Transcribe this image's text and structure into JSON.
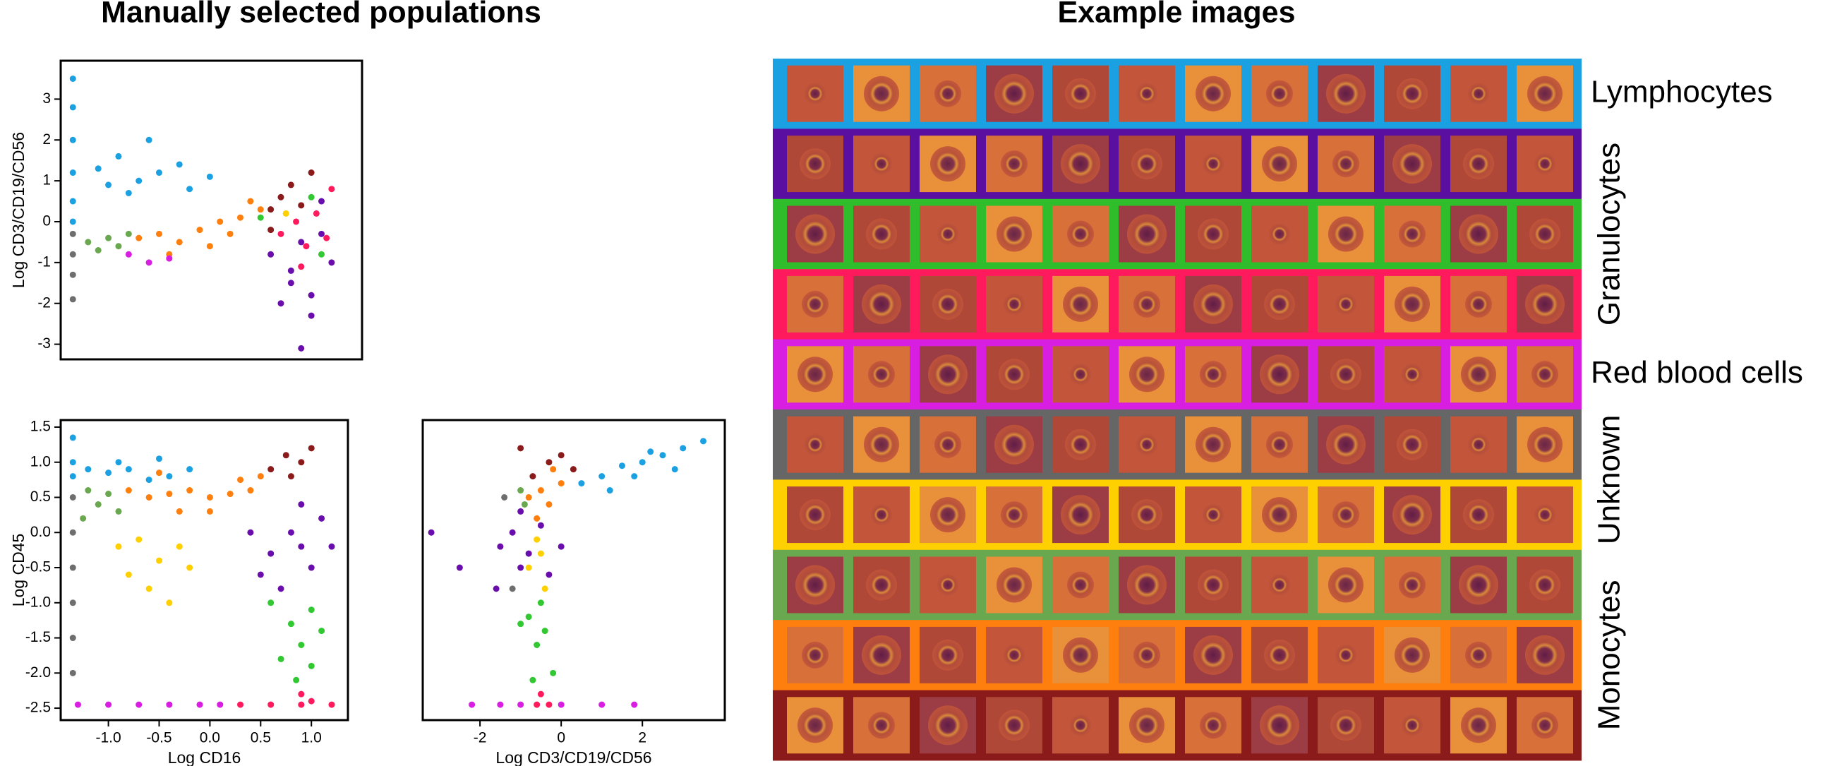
{
  "header": {
    "left_title": "Manually selected populations",
    "right_title": "Example images"
  },
  "chart_data": [
    {
      "type": "scatter",
      "y_label": "Log CD3/CD19/CD56",
      "xlim": [
        -1.47,
        1.5
      ],
      "ylim": [
        -3.37,
        3.94
      ],
      "yticks": [
        -3,
        -2,
        -1,
        0,
        1,
        2,
        3
      ],
      "series": [
        {
          "color": "#1ba1e2",
          "x": [
            -1.35,
            -1.35,
            -1.35,
            -1.35,
            -1.35,
            -1.35,
            -1.1,
            -0.9,
            -0.7,
            -0.5,
            -0.3,
            -0.6,
            -0.8,
            -0.2,
            0,
            -1.0
          ],
          "values": [
            3.5,
            2.8,
            2.0,
            1.2,
            0.5,
            0,
            1.3,
            1.6,
            1.0,
            1.2,
            1.4,
            2.0,
            0.7,
            0.8,
            1.1,
            0.9
          ]
        },
        {
          "color": "#6e6e6e",
          "x": [
            -1.35,
            -1.35,
            -1.35,
            -1.35
          ],
          "values": [
            -0.3,
            -0.8,
            -1.3,
            -1.9
          ]
        },
        {
          "color": "#6aa84f",
          "x": [
            -1.2,
            -1.0,
            -0.9,
            -1.1,
            -0.8
          ],
          "values": [
            -0.5,
            -0.4,
            -0.6,
            -0.7,
            -0.3
          ]
        },
        {
          "color": "#ff7f0e",
          "x": [
            -0.7,
            -0.5,
            -0.3,
            -0.1,
            0.1,
            0.3,
            0.5,
            0.2,
            -0.4,
            0.4,
            0
          ],
          "values": [
            -0.4,
            -0.3,
            -0.5,
            -0.2,
            0,
            0.1,
            0.3,
            -0.3,
            -0.8,
            0.5,
            -0.6
          ]
        },
        {
          "color": "#8b1a1a",
          "x": [
            0.6,
            0.7,
            0.8,
            0.9,
            1.0,
            0.6
          ],
          "values": [
            0.3,
            0.6,
            0.9,
            0.4,
            1.2,
            -0.2
          ]
        },
        {
          "color": "#6a0dad",
          "x": [
            0.6,
            0.8,
            0.9,
            1.0,
            1.1,
            0.7,
            1.0,
            0.9,
            1.1,
            0.8,
            1.2
          ],
          "values": [
            -0.8,
            -1.2,
            -0.5,
            -1.8,
            -0.3,
            -2.0,
            -2.3,
            -3.1,
            0.5,
            -1.5,
            -1.0
          ]
        },
        {
          "color": "#ff1a5e",
          "x": [
            0.7,
            0.85,
            0.95,
            1.05,
            1.15,
            1.2,
            0.9
          ],
          "values": [
            -0.3,
            0,
            -0.6,
            0.2,
            -0.4,
            0.8,
            -1.1
          ]
        },
        {
          "color": "#d81ee0",
          "x": [
            -0.6,
            -0.4,
            -0.8
          ],
          "values": [
            -1.0,
            -0.9,
            -0.8
          ]
        },
        {
          "color": "#32c832",
          "x": [
            0.5,
            1.0,
            1.1
          ],
          "values": [
            0.1,
            0.6,
            -0.8
          ]
        },
        {
          "color": "#ffd000",
          "x": [
            0.75
          ],
          "values": [
            0.2
          ]
        }
      ]
    },
    {
      "type": "scatter",
      "x_label": "Log CD16",
      "y_label": "Log CD45",
      "xlim": [
        -1.47,
        1.36
      ],
      "ylim": [
        -2.67,
        1.6
      ],
      "xticks": [
        {
          "value": -1,
          "label": "-1.0"
        },
        -0.5,
        {
          "value": 0,
          "label": "0.0"
        },
        0.5,
        {
          "value": 1,
          "label": "1.0"
        }
      ],
      "yticks": [
        -2.5,
        {
          "value": -2,
          "label": "-2.0"
        },
        -1.5,
        {
          "value": -1,
          "label": "-1.0"
        },
        -0.5,
        {
          "value": 0,
          "label": "0.0"
        },
        0.5,
        {
          "value": 1,
          "label": "1.0"
        },
        1.5
      ],
      "series": [
        {
          "color": "#1ba1e2",
          "x": [
            -1.35,
            -1.35,
            -1.35,
            -1.2,
            -1.0,
            -0.8,
            -0.6,
            -0.4,
            -0.2,
            -0.9,
            -0.5
          ],
          "values": [
            1.35,
            1.0,
            0.8,
            0.9,
            0.85,
            0.9,
            0.75,
            0.8,
            0.9,
            1.0,
            1.05
          ]
        },
        {
          "color": "#6e6e6e",
          "x": [
            -1.35,
            -1.35,
            -1.35,
            -1.35,
            -1.35,
            -1.35
          ],
          "values": [
            0.5,
            0,
            -0.5,
            -1.0,
            -1.5,
            -2.0
          ]
        },
        {
          "color": "#6aa84f",
          "x": [
            -1.2,
            -1.0,
            -1.1,
            -0.9,
            -1.25
          ],
          "values": [
            0.6,
            0.55,
            0.4,
            0.3,
            0.2
          ]
        },
        {
          "color": "#ff7f0e",
          "x": [
            -0.8,
            -0.6,
            -0.4,
            -0.2,
            0,
            0.2,
            0.4,
            0.5,
            -0.3,
            0,
            0.3,
            -0.5
          ],
          "values": [
            0.6,
            0.5,
            0.55,
            0.6,
            0.5,
            0.55,
            0.6,
            0.8,
            0.3,
            0.3,
            0.75,
            0.85
          ]
        },
        {
          "color": "#ffd000",
          "x": [
            -0.9,
            -0.7,
            -0.5,
            -0.3,
            -0.6,
            -0.4,
            -0.8,
            -0.2
          ],
          "values": [
            -0.2,
            -0.1,
            -0.4,
            -0.2,
            -0.8,
            -1.0,
            -0.6,
            -0.5
          ]
        },
        {
          "color": "#8b1a1a",
          "x": [
            0.6,
            0.75,
            0.9,
            1.0,
            0.8
          ],
          "values": [
            0.9,
            1.1,
            1.0,
            1.2,
            0.8
          ]
        },
        {
          "color": "#6a0dad",
          "x": [
            0.4,
            0.6,
            0.8,
            1.0,
            1.1,
            0.7,
            0.9,
            1.2,
            0.5,
            0.9
          ],
          "values": [
            0,
            -0.3,
            0,
            -0.5,
            0.2,
            -0.8,
            0.4,
            -0.2,
            -0.6,
            -0.2
          ]
        },
        {
          "color": "#32c832",
          "x": [
            0.6,
            0.8,
            1.0,
            0.9,
            0.7,
            1.1,
            0.85,
            1.0
          ],
          "values": [
            -1.0,
            -1.3,
            -1.1,
            -1.6,
            -1.8,
            -1.4,
            -2.1,
            -1.9
          ]
        },
        {
          "color": "#ff1a5e",
          "x": [
            0.9,
            1.0,
            0.3,
            0.6,
            0.9,
            1.2
          ],
          "values": [
            -2.3,
            -2.4,
            -2.45,
            -2.45,
            -2.45,
            -2.45
          ]
        },
        {
          "color": "#d81ee0",
          "x": [
            -1.3,
            -1.0,
            -0.7,
            -0.4,
            -0.1,
            0.1
          ],
          "values": [
            -2.45,
            -2.45,
            -2.45,
            -2.45,
            -2.45,
            -2.45
          ]
        }
      ]
    },
    {
      "type": "scatter",
      "x_label": "Log CD3/CD19/CD56",
      "xlim": [
        -3.41,
        4.03
      ],
      "ylim": [
        -2.67,
        1.6
      ],
      "xticks": [
        -2,
        0,
        2
      ],
      "series": [
        {
          "color": "#1ba1e2",
          "x": [
            0.5,
            1.0,
            1.5,
            2.0,
            2.5,
            3.0,
            1.8,
            2.2,
            1.2,
            3.5,
            2.8
          ],
          "values": [
            0.7,
            0.8,
            0.95,
            1.0,
            1.1,
            1.2,
            0.8,
            1.15,
            0.6,
            1.3,
            0.9
          ]
        },
        {
          "color": "#ff7f0e",
          "x": [
            -0.8,
            -0.5,
            -0.3,
            0,
            -0.6,
            -0.2
          ],
          "values": [
            0.5,
            0.6,
            0.4,
            0.7,
            0.2,
            0.9
          ]
        },
        {
          "color": "#8b1a1a",
          "x": [
            -0.7,
            -0.3,
            0,
            0.3,
            -1.0
          ],
          "values": [
            0.8,
            1.0,
            1.1,
            0.9,
            1.2
          ]
        },
        {
          "color": "#6a0dad",
          "x": [
            -1.5,
            -1.2,
            -1.0,
            -0.8,
            -0.5,
            -1.0,
            -0.3,
            -1.6,
            0,
            -3.2,
            -2.5
          ],
          "values": [
            -0.2,
            0,
            -0.5,
            -0.3,
            0.1,
            0.3,
            -0.6,
            -0.8,
            -0.2,
            0,
            -0.5
          ]
        },
        {
          "color": "#ffd000",
          "x": [
            -0.8,
            -0.5,
            -0.6,
            -0.4
          ],
          "values": [
            -0.5,
            -0.3,
            -0.1,
            -0.8
          ]
        },
        {
          "color": "#32c832",
          "x": [
            -0.8,
            -0.6,
            -0.4,
            -0.2,
            -0.7,
            -1.0,
            -0.5
          ],
          "values": [
            -1.2,
            -1.6,
            -1.4,
            -2.0,
            -2.1,
            -1.3,
            -1.0
          ]
        },
        {
          "color": "#ff1a5e",
          "x": [
            -0.5,
            -0.6,
            -0.3
          ],
          "values": [
            -2.3,
            -2.45,
            -2.45
          ]
        },
        {
          "color": "#d81ee0",
          "x": [
            -2.2,
            -1.5,
            -1.0,
            0,
            1.0,
            1.8
          ],
          "values": [
            -2.45,
            -2.45,
            -2.45,
            -2.45,
            -2.45,
            -2.45
          ]
        },
        {
          "color": "#6aa84f",
          "x": [
            -1.0,
            -0.9
          ],
          "values": [
            0.6,
            0.4
          ]
        },
        {
          "color": "#6e6e6e",
          "x": [
            -1.4,
            -1.2
          ],
          "values": [
            0.5,
            -0.8
          ]
        }
      ]
    }
  ],
  "image_grid": {
    "images_per_row": 12,
    "groups": [
      {
        "label": "Lymphocytes",
        "row_colors": [
          "#1ba1e2"
        ]
      },
      {
        "label": "Granulocytes",
        "row_colors": [
          "#5b0fa0",
          "#2fbd2b",
          "#ff1a5e"
        ]
      },
      {
        "label": "Red blood cells",
        "row_colors": [
          "#d81ee0"
        ]
      },
      {
        "label": "Unknown",
        "row_colors": [
          "#666666",
          "#ffd000"
        ]
      },
      {
        "label": "Monocytes",
        "row_colors": [
          "#6aa84f",
          "#ff7f0e",
          "#8b1a1a"
        ]
      }
    ]
  }
}
